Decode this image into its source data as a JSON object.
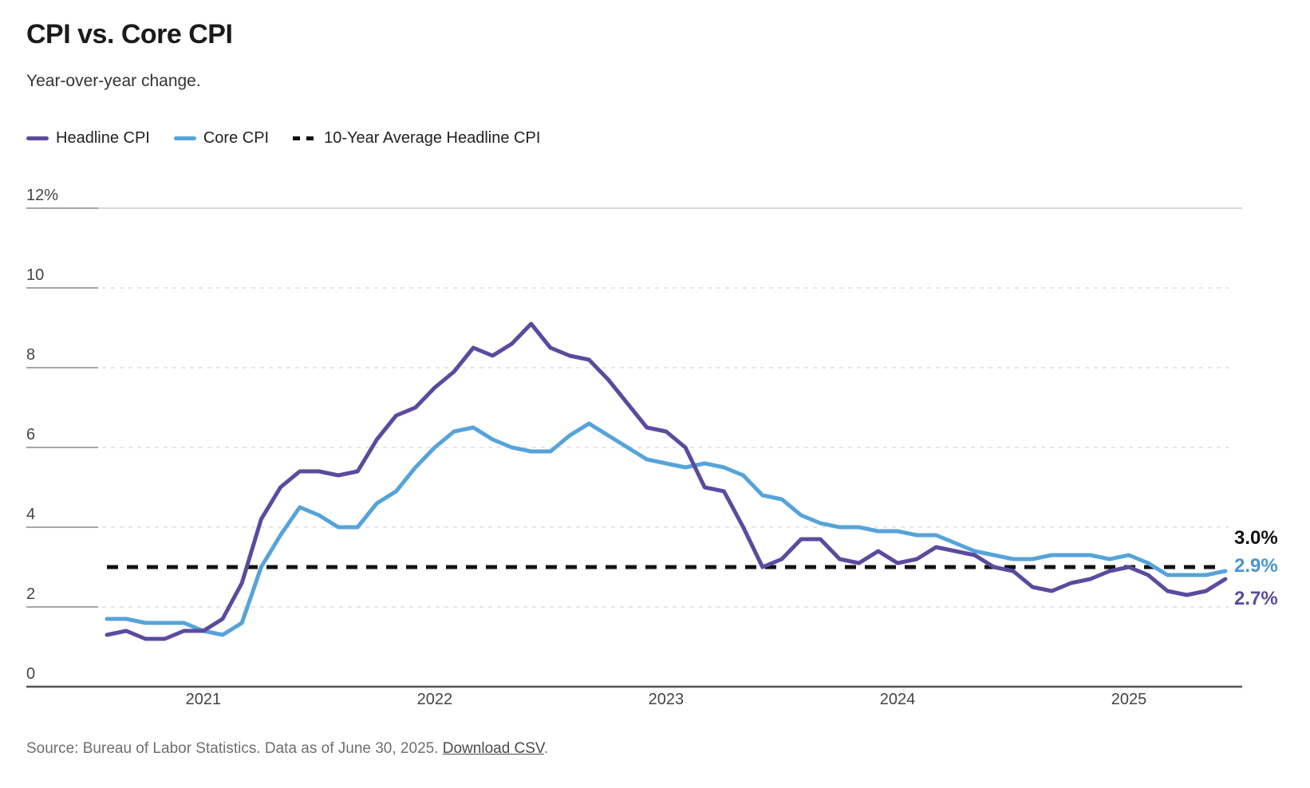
{
  "title": "CPI vs. Core CPI",
  "subtitle": "Year-over-year change.",
  "legend": [
    {
      "label": "Headline CPI",
      "color": "#5b4a9e",
      "style": "solid"
    },
    {
      "label": "Core CPI",
      "color": "#56a3da",
      "style": "solid"
    },
    {
      "label": "10-Year Average Headline CPI",
      "color": "#111111",
      "style": "dashed"
    }
  ],
  "end_labels": [
    {
      "text": "3.0%",
      "color": "#111111"
    },
    {
      "text": "2.9%",
      "color": "#4a94cf"
    },
    {
      "text": "2.7%",
      "color": "#5b4a9e"
    }
  ],
  "source": {
    "prefix": "Source: Bureau of Labor Statistics. Data as of June 30, 2025. ",
    "link": "Download CSV",
    "suffix": "."
  },
  "chart_data": {
    "type": "line",
    "title": "CPI vs. Core CPI",
    "subtitle": "Year-over-year change.",
    "x": [
      "2020-08",
      "2020-09",
      "2020-10",
      "2020-11",
      "2020-12",
      "2021-01",
      "2021-02",
      "2021-03",
      "2021-04",
      "2021-05",
      "2021-06",
      "2021-07",
      "2021-08",
      "2021-09",
      "2021-10",
      "2021-11",
      "2021-12",
      "2022-01",
      "2022-02",
      "2022-03",
      "2022-04",
      "2022-05",
      "2022-06",
      "2022-07",
      "2022-08",
      "2022-09",
      "2022-10",
      "2022-11",
      "2022-12",
      "2023-01",
      "2023-02",
      "2023-03",
      "2023-04",
      "2023-05",
      "2023-06",
      "2023-07",
      "2023-08",
      "2023-09",
      "2023-10",
      "2023-11",
      "2023-12",
      "2024-01",
      "2024-02",
      "2024-03",
      "2024-04",
      "2024-05",
      "2024-06",
      "2024-07",
      "2024-08",
      "2024-09",
      "2024-10",
      "2024-11",
      "2024-12",
      "2025-01",
      "2025-02",
      "2025-03",
      "2025-04",
      "2025-05",
      "2025-06"
    ],
    "series": [
      {
        "name": "Headline CPI",
        "color": "#5b4a9e",
        "values": [
          1.3,
          1.4,
          1.2,
          1.2,
          1.4,
          1.4,
          1.7,
          2.6,
          4.2,
          5.0,
          5.4,
          5.4,
          5.3,
          5.4,
          6.2,
          6.8,
          7.0,
          7.5,
          7.9,
          8.5,
          8.3,
          8.6,
          9.1,
          8.5,
          8.3,
          8.2,
          7.7,
          7.1,
          6.5,
          6.4,
          6.0,
          5.0,
          4.9,
          4.0,
          3.0,
          3.2,
          3.7,
          3.7,
          3.2,
          3.1,
          3.4,
          3.1,
          3.2,
          3.5,
          3.4,
          3.3,
          3.0,
          2.9,
          2.5,
          2.4,
          2.6,
          2.7,
          2.9,
          3.0,
          2.8,
          2.4,
          2.3,
          2.4,
          2.7
        ]
      },
      {
        "name": "Core CPI",
        "color": "#56a3da",
        "values": [
          1.7,
          1.7,
          1.6,
          1.6,
          1.6,
          1.4,
          1.3,
          1.6,
          3.0,
          3.8,
          4.5,
          4.3,
          4.0,
          4.0,
          4.6,
          4.9,
          5.5,
          6.0,
          6.4,
          6.5,
          6.2,
          6.0,
          5.9,
          5.9,
          6.3,
          6.6,
          6.3,
          6.0,
          5.7,
          5.6,
          5.5,
          5.6,
          5.5,
          5.3,
          4.8,
          4.7,
          4.3,
          4.1,
          4.0,
          4.0,
          3.9,
          3.9,
          3.8,
          3.8,
          3.6,
          3.4,
          3.3,
          3.2,
          3.2,
          3.3,
          3.3,
          3.3,
          3.2,
          3.3,
          3.1,
          2.8,
          2.8,
          2.8,
          2.9
        ]
      }
    ],
    "reference_line": {
      "name": "10-Year Average Headline CPI",
      "value": 3.0,
      "style": "dashed",
      "color": "#111111",
      "label": "3.0%"
    },
    "last_value_labels": {
      "Headline CPI": "2.7%",
      "Core CPI": "2.9%"
    },
    "xlabel": "",
    "ylabel": "",
    "ylim": [
      0,
      12
    ],
    "ytick_values": [
      0,
      2,
      4,
      6,
      8,
      10,
      12
    ],
    "ytick_labels": [
      "0",
      "2",
      "4",
      "6",
      "8",
      "10",
      "12%"
    ],
    "x_tick_labels": [
      "2021",
      "2022",
      "2023",
      "2024",
      "2025"
    ],
    "grid": "horizontal-dashed",
    "legend_position": "top-left"
  }
}
